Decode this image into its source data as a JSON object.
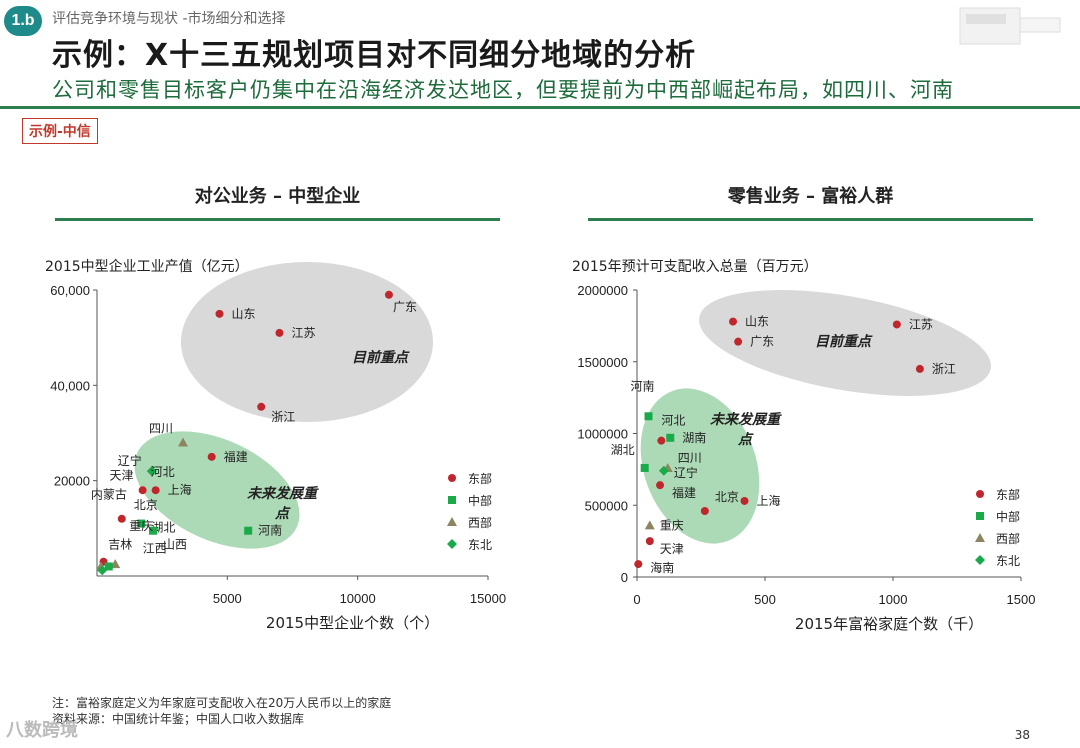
{
  "header": {
    "badge": "1.b",
    "breadcrumb": "评估竞争环境与现状 -市场细分和选择",
    "title": "示例：X十三五规划项目对不同细分地域的分析",
    "subtitle": "公司和零售目标客户仍集中在沿海经济发达地区，但要提前为中西部崛起布局，如四川、河南",
    "tag": "示例-中信"
  },
  "colors": {
    "east": "#c0272d",
    "central": "#1aaa4a",
    "west": "#8f8461",
    "northeast": "#1aaa4a",
    "accent": "#2e7d4f",
    "ellipse_current": "#d9d9d9",
    "ellipse_future": "#9fd3a9"
  },
  "chart_data": [
    {
      "type": "scatter",
      "title": "对公业务 – 中型企业",
      "ylabel": "2015中型企业工业产值（亿元）",
      "xlabel": "2015中型企业个数（个）",
      "xlim": [
        0,
        15000
      ],
      "ylim": [
        0,
        60000
      ],
      "xticks": [
        "5000",
        "10000",
        "15000"
      ],
      "yticks": [
        "20000",
        "40,000",
        "60,000"
      ],
      "ytick_values": [
        20000,
        40000,
        60000
      ],
      "xtick_values": [
        5000,
        10000,
        15000
      ],
      "legend": [
        "东部",
        "中部",
        "西部",
        "东北"
      ],
      "legend_position": "right",
      "annotations": [
        "目前重点",
        "未来发展重点"
      ],
      "points": [
        {
          "label": "广东",
          "group": "东部",
          "x": 11200,
          "y": 59000
        },
        {
          "label": "山东",
          "group": "东部",
          "x": 4700,
          "y": 55000
        },
        {
          "label": "江苏",
          "group": "东部",
          "x": 7000,
          "y": 51000
        },
        {
          "label": "浙江",
          "group": "东部",
          "x": 6300,
          "y": 35500
        },
        {
          "label": "福建",
          "group": "东部",
          "x": 4400,
          "y": 25000
        },
        {
          "label": "四川",
          "group": "西部",
          "x": 3300,
          "y": 28000
        },
        {
          "label": "辽宁",
          "group": "东北",
          "x": 2100,
          "y": 22000
        },
        {
          "label": "河北",
          "group": "东部",
          "x": 1750,
          "y": 18000
        },
        {
          "label": "上海",
          "group": "东部",
          "x": 2250,
          "y": 18000
        },
        {
          "label": "北京",
          "group": "东部",
          "x": 950,
          "y": 12000
        },
        {
          "label": "湖北",
          "group": "中部",
          "x": 1700,
          "y": 11000
        },
        {
          "label": "山西",
          "group": "中部",
          "x": 2150,
          "y": 9500
        },
        {
          "label": "河南",
          "group": "中部",
          "x": 5800,
          "y": 9500
        },
        {
          "label": "天津",
          "group": "东部",
          "x": 250,
          "y": 3000
        },
        {
          "label": "内蒙古",
          "group": "西部",
          "x": 150,
          "y": 2000
        },
        {
          "label": "重庆",
          "group": "西部",
          "x": 700,
          "y": 2500
        },
        {
          "label": "吉林",
          "group": "东北",
          "x": 200,
          "y": 1200
        },
        {
          "label": "江西",
          "group": "中部",
          "x": 450,
          "y": 2000
        }
      ]
    },
    {
      "type": "scatter",
      "title": "零售业务 – 富裕人群",
      "ylabel": "2015年预计可支配收入总量（百万元）",
      "xlabel": "2015年富裕家庭个数（千）",
      "xlim": [
        0,
        1500
      ],
      "ylim": [
        0,
        2000000
      ],
      "xticks": [
        "0",
        "500",
        "1000",
        "1500"
      ],
      "xtick_values": [
        0,
        500,
        1000,
        1500
      ],
      "yticks": [
        "0",
        "500000",
        "1000000",
        "1500000",
        "2000000"
      ],
      "ytick_values": [
        0,
        500000,
        1000000,
        1500000,
        2000000
      ],
      "legend": [
        "东部",
        "中部",
        "西部",
        "东北"
      ],
      "legend_position": "right",
      "annotations": [
        "目前重点",
        "未来发展重点"
      ],
      "points": [
        {
          "label": "山东",
          "group": "东部",
          "x": 375,
          "y": 1780000
        },
        {
          "label": "广东",
          "group": "东部",
          "x": 395,
          "y": 1640000
        },
        {
          "label": "江苏",
          "group": "东部",
          "x": 1015,
          "y": 1760000
        },
        {
          "label": "浙江",
          "group": "东部",
          "x": 1105,
          "y": 1450000
        },
        {
          "label": "河南",
          "group": "中部",
          "x": 45,
          "y": 1120000
        },
        {
          "label": "河北",
          "group": "东部",
          "x": 95,
          "y": 950000
        },
        {
          "label": "湖南",
          "group": "中部",
          "x": 130,
          "y": 970000
        },
        {
          "label": "湖北",
          "group": "中部",
          "x": 30,
          "y": 760000
        },
        {
          "label": "四川",
          "group": "西部",
          "x": 120,
          "y": 760000
        },
        {
          "label": "辽宁",
          "group": "东北",
          "x": 105,
          "y": 740000
        },
        {
          "label": "福建",
          "group": "东部",
          "x": 90,
          "y": 640000
        },
        {
          "label": "北京",
          "group": "东部",
          "x": 265,
          "y": 460000
        },
        {
          "label": "上海",
          "group": "东部",
          "x": 420,
          "y": 530000
        },
        {
          "label": "重庆",
          "group": "西部",
          "x": 50,
          "y": 360000
        },
        {
          "label": "天津",
          "group": "东部",
          "x": 50,
          "y": 250000
        },
        {
          "label": "海南",
          "group": "东部",
          "x": 5,
          "y": 90000
        }
      ]
    }
  ],
  "footer": {
    "note": "注：富裕家庭定义为年家庭可支配收入在20万人民币以上的家庭",
    "source": "资料来源：中国统计年鉴；中国人口收入数据库",
    "page": "38",
    "watermark": "八数跨境"
  }
}
